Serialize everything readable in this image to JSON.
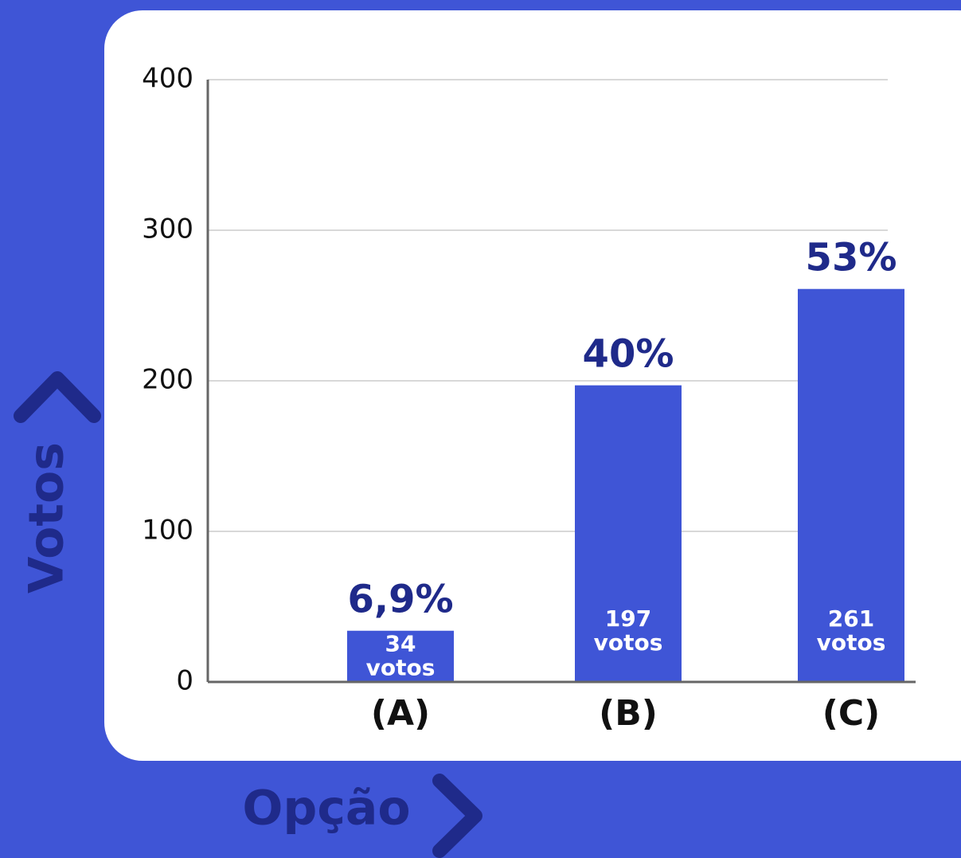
{
  "chart_data": {
    "type": "bar",
    "x_label": "Opção",
    "y_label": "Votos",
    "categories": [
      "(A)",
      "(B)",
      "(C)"
    ],
    "values": [
      34,
      197,
      261
    ],
    "value_labels": [
      "34 votos",
      "197 votos",
      "261 votos"
    ],
    "percent_labels": [
      "6,9%",
      "40%",
      "53%"
    ],
    "color": "#3f55d6",
    "ylim": [
      0,
      400
    ],
    "yticks": [
      0,
      100,
      200,
      300,
      400
    ],
    "grid": true
  }
}
